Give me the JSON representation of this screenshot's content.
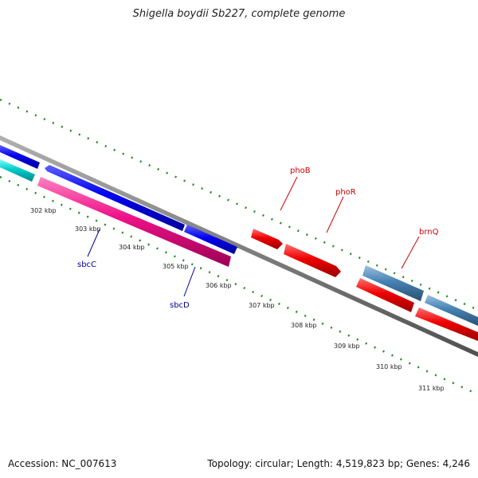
{
  "title": "Shigella boydii Sb227, complete genome",
  "footer": {
    "accession_label": "Accession:",
    "accession": "NC_007613",
    "topology_label": "Topology:",
    "topology": "circular",
    "length_label": "Length:",
    "length": "4,519,823 bp",
    "genes_label": "Genes:",
    "genes": "4,246"
  },
  "axis": {
    "unit": "kbp",
    "ticks": [
      "302 kbp",
      "303 kbp",
      "304 kbp",
      "305 kbp",
      "306 kbp",
      "307 kbp",
      "308 kbp",
      "309 kbp",
      "310 kbp",
      "311 kbp"
    ]
  },
  "gene_labels": [
    {
      "name": "phoB",
      "color": "#cc0000"
    },
    {
      "name": "phoR",
      "color": "#cc0000"
    },
    {
      "name": "brnQ",
      "color": "#cc0000"
    },
    {
      "name": "sbcC",
      "color": "#000099"
    },
    {
      "name": "sbcD",
      "color": "#000099"
    }
  ],
  "colors": {
    "backbone": "#808080",
    "ticks": "#228B22",
    "blue": "#0000ee",
    "cyan": "#00cccc",
    "magenta": "#ee1188",
    "red": "#ee0000",
    "steelblue": "#4682b4"
  }
}
